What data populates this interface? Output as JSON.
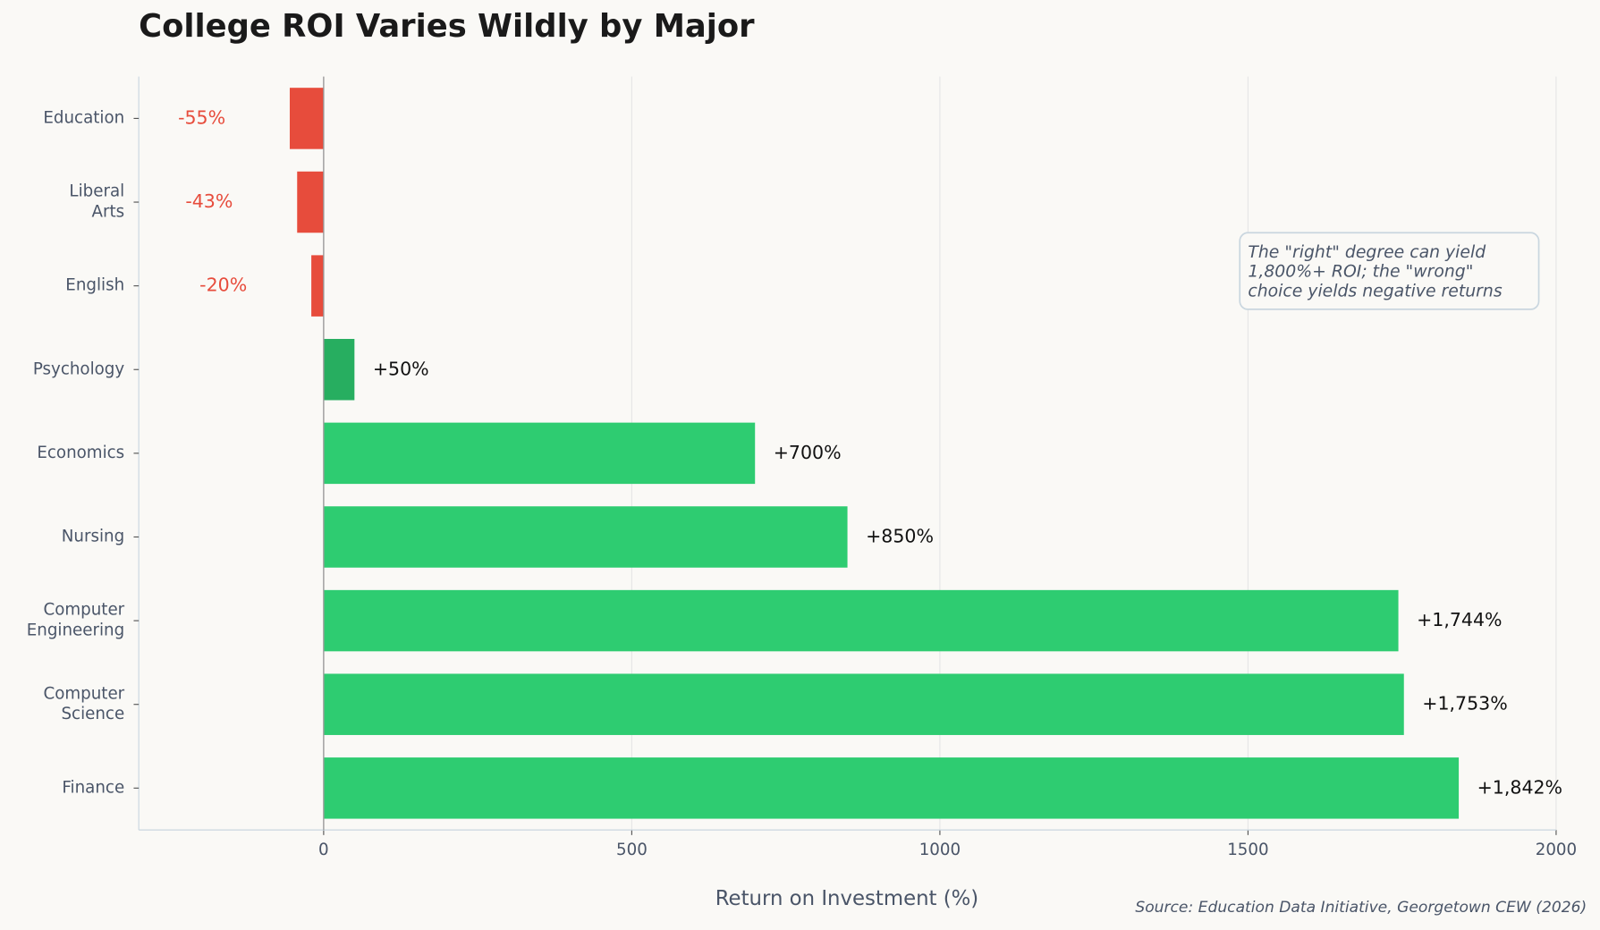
{
  "chart_data": {
    "type": "barh",
    "title": "College ROI Varies Wildly by Major",
    "xlabel": "Return on Investment (%)",
    "source": "Source: Education Data Initiative, Georgetown CEW (2026)",
    "annotation": "The \"right\" degree can yield\n1,800%+ ROI; the \"wrong\"\nchoice yields negative returns",
    "categories": [
      "Education",
      "Liberal Arts",
      "English",
      "Psychology",
      "Economics",
      "Nursing",
      "Computer Engineering",
      "Computer Science",
      "Finance"
    ],
    "values": [
      -55,
      -43,
      -20,
      50,
      700,
      850,
      1744,
      1753,
      1842
    ],
    "value_labels": [
      "-55%",
      "-43%",
      "-20%",
      "+50%",
      "+700%",
      "+850%",
      "+1,744%",
      "+1,753%",
      "+1,842%"
    ],
    "colors": [
      "#e74c3c",
      "#e74c3c",
      "#e74c3c",
      "#27ae60",
      "#2ecc71",
      "#2ecc71",
      "#2ecc71",
      "#2ecc71",
      "#2ecc71"
    ],
    "xlim": [
      -300,
      2000
    ],
    "xticks": [
      0,
      500,
      1000,
      1500,
      2000
    ],
    "grid": true
  }
}
